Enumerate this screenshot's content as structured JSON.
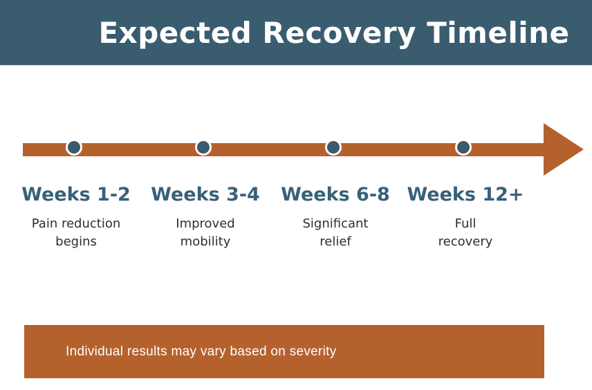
{
  "header": {
    "title": "Expected Recovery Timeline"
  },
  "timeline": {
    "milestones": [
      {
        "label": "Weeks 1-2",
        "desc_line1": "Pain reduction",
        "desc_line2": "begins"
      },
      {
        "label": "Weeks 3-4",
        "desc_line1": "Improved",
        "desc_line2": "mobility"
      },
      {
        "label": "Weeks 6-8",
        "desc_line1": "Significant",
        "desc_line2": "relief"
      },
      {
        "label": "Weeks 12+",
        "desc_line1": "Full",
        "desc_line2": "recovery"
      }
    ]
  },
  "footer": {
    "note": "Individual results may vary based on severity"
  },
  "colors": {
    "header_bg": "#3a5c6f",
    "accent_orange": "#b5612e",
    "marker_teal": "#3a5a6d",
    "label_teal": "#386079",
    "desc_gray": "#2e2e2e",
    "title_white": "#ffffff"
  }
}
